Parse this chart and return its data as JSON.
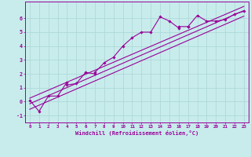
{
  "xlabel": "Windchill (Refroidissement éolien,°C)",
  "bg_color": "#c8ecec",
  "line_color": "#990099",
  "grid_color": "#b0d8d8",
  "xlim": [
    -0.5,
    23.5
  ],
  "ylim": [
    -1.5,
    7.2
  ],
  "xticks": [
    0,
    1,
    2,
    3,
    4,
    5,
    6,
    7,
    8,
    9,
    10,
    11,
    12,
    13,
    14,
    15,
    16,
    17,
    18,
    19,
    20,
    21,
    22,
    23
  ],
  "yticks": [
    -1,
    0,
    1,
    2,
    3,
    4,
    5,
    6
  ],
  "scatter_x": [
    0,
    1,
    2,
    3,
    4,
    4,
    5,
    6,
    7,
    7,
    8,
    9,
    10,
    11,
    12,
    13,
    14,
    15,
    16,
    16,
    17,
    17,
    18,
    19,
    20,
    21,
    22,
    23
  ],
  "scatter_y": [
    0.1,
    -0.7,
    0.4,
    0.4,
    1.4,
    1.2,
    1.3,
    2.1,
    2.0,
    2.1,
    2.8,
    3.2,
    4.0,
    4.6,
    5.0,
    5.0,
    6.1,
    5.8,
    5.3,
    5.4,
    5.4,
    5.4,
    6.2,
    5.8,
    5.8,
    5.9,
    6.3,
    6.5
  ],
  "line1_x": [
    0,
    23
  ],
  "line1_y": [
    -0.15,
    6.55
  ],
  "line2_x": [
    0,
    23
  ],
  "line2_y": [
    0.25,
    6.85
  ],
  "line3_x": [
    0,
    23
  ],
  "line3_y": [
    -0.55,
    6.15
  ]
}
